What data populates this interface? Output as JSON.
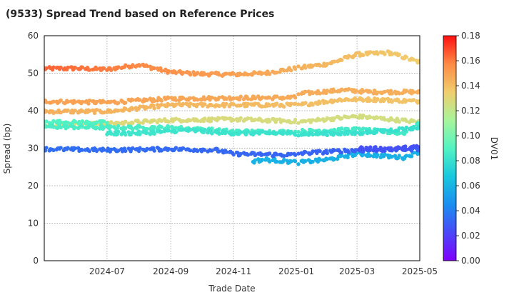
{
  "chart_data": {
    "type": "scatter",
    "title": "(9533)   Spread Trend based on Reference Prices",
    "xlabel": "Trade Date",
    "ylabel": "Spread (bp)",
    "ylim": [
      0,
      60
    ],
    "yticks": [
      "0",
      "10",
      "20",
      "30",
      "40",
      "50",
      "60"
    ],
    "xlim": [
      "2024-05-01",
      "2025-05-01"
    ],
    "xticks": [
      "2024-07",
      "2024-09",
      "2024-11",
      "2025-01",
      "2025-03",
      "2025-05"
    ],
    "grid": true,
    "colorbar": {
      "label": "DV01",
      "min": 0.0,
      "max": 0.18,
      "ticks": [
        "0.00",
        "0.02",
        "0.04",
        "0.06",
        "0.08",
        "0.10",
        "0.12",
        "0.14",
        "0.16",
        "0.18"
      ],
      "colormap": "rainbow"
    },
    "series": [
      {
        "dv01_start": 0.165,
        "dv01_end": 0.135,
        "segments": [
          {
            "from": "2024-05-01",
            "to": "2024-12-31",
            "points": [
              [
                "2024-05-01",
                51.2
              ],
              [
                "2024-06-01",
                51.3
              ],
              [
                "2024-07-01",
                51.0
              ],
              [
                "2024-08-01",
                52.3
              ],
              [
                "2024-09-01",
                50.3
              ],
              [
                "2024-10-01",
                49.8
              ],
              [
                "2024-11-01",
                49.7
              ],
              [
                "2024-12-01",
                50.0
              ],
              [
                "2024-12-31",
                51.3
              ]
            ]
          },
          {
            "from": "2025-01-03",
            "to": "2025-04-30",
            "points": [
              [
                "2025-01-03",
                51.4
              ],
              [
                "2025-02-01",
                52.5
              ],
              [
                "2025-03-01",
                55.0
              ],
              [
                "2025-04-01",
                55.5
              ],
              [
                "2025-04-30",
                53.0
              ]
            ]
          }
        ]
      },
      {
        "dv01_start": 0.15,
        "dv01_end": 0.145,
        "segments": [
          {
            "from": "2024-05-01",
            "to": "2024-12-31",
            "points": [
              [
                "2024-05-01",
                42.5
              ],
              [
                "2024-07-01",
                42.2
              ],
              [
                "2024-09-01",
                43.2
              ],
              [
                "2024-11-01",
                43.4
              ],
              [
                "2024-12-31",
                43.5
              ]
            ]
          },
          {
            "from": "2025-01-03",
            "to": "2025-04-30",
            "points": [
              [
                "2025-01-03",
                44.5
              ],
              [
                "2025-02-15",
                45.5
              ],
              [
                "2025-03-15",
                45.0
              ],
              [
                "2025-04-30",
                45.0
              ]
            ]
          }
        ]
      },
      {
        "dv01_start": 0.145,
        "dv01_end": 0.138,
        "segments": [
          {
            "from": "2024-05-01",
            "to": "2024-12-31",
            "points": [
              [
                "2024-05-01",
                39.8
              ],
              [
                "2024-07-01",
                39.8
              ],
              [
                "2024-09-01",
                41.5
              ],
              [
                "2024-11-01",
                41.5
              ],
              [
                "2024-12-31",
                41.5
              ]
            ]
          },
          {
            "from": "2025-01-03",
            "to": "2025-04-30",
            "points": [
              [
                "2025-01-03",
                41.5
              ],
              [
                "2025-02-15",
                43.0
              ],
              [
                "2025-03-15",
                43.0
              ],
              [
                "2025-04-30",
                42.5
              ]
            ]
          }
        ]
      },
      {
        "dv01_start": 0.13,
        "dv01_end": 0.125,
        "segments": [
          {
            "from": "2024-05-01",
            "to": "2024-12-31",
            "points": [
              [
                "2024-05-01",
                36.3
              ],
              [
                "2024-07-01",
                36.5
              ],
              [
                "2024-09-01",
                37.5
              ],
              [
                "2024-11-01",
                37.7
              ],
              [
                "2024-12-31",
                37.2
              ]
            ]
          },
          {
            "from": "2025-01-03",
            "to": "2025-04-30",
            "points": [
              [
                "2025-01-03",
                37.0
              ],
              [
                "2025-03-01",
                38.5
              ],
              [
                "2025-04-30",
                37.0
              ]
            ]
          }
        ]
      },
      {
        "dv01_start": 0.09,
        "dv01_end": 0.088,
        "segments": [
          {
            "from": "2024-05-01",
            "to": "2024-07-01",
            "points": [
              [
                "2024-05-01",
                37.0
              ],
              [
                "2024-07-01",
                36.8
              ]
            ]
          }
        ]
      },
      {
        "dv01_start": 0.087,
        "dv01_end": 0.085,
        "segments": [
          {
            "from": "2024-05-01",
            "to": "2024-12-31",
            "points": [
              [
                "2024-05-01",
                35.8
              ],
              [
                "2024-07-01",
                35.5
              ],
              [
                "2024-09-01",
                35.5
              ],
              [
                "2024-11-01",
                34.5
              ],
              [
                "2024-12-31",
                34.3
              ]
            ]
          },
          {
            "from": "2025-01-03",
            "to": "2025-04-30",
            "points": [
              [
                "2025-01-03",
                34.5
              ],
              [
                "2025-03-01",
                35.0
              ],
              [
                "2025-04-15",
                34.0
              ],
              [
                "2025-04-30",
                36.5
              ]
            ]
          }
        ]
      },
      {
        "dv01_start": 0.083,
        "dv01_end": 0.08,
        "segments": [
          {
            "from": "2024-07-01",
            "to": "2024-12-31",
            "points": [
              [
                "2024-07-01",
                34.0
              ],
              [
                "2024-08-01",
                34.0
              ],
              [
                "2024-09-15",
                34.8
              ],
              [
                "2024-11-01",
                34.0
              ],
              [
                "2024-12-31",
                34.0
              ]
            ]
          },
          {
            "from": "2025-01-03",
            "to": "2025-04-30",
            "points": [
              [
                "2025-01-03",
                33.8
              ],
              [
                "2025-03-01",
                34.0
              ],
              [
                "2025-04-30",
                35.5
              ]
            ]
          }
        ]
      },
      {
        "dv01_start": 0.06,
        "dv01_end": 0.058,
        "segments": [
          {
            "from": "2024-11-20",
            "to": "2024-12-31",
            "points": [
              [
                "2024-11-20",
                26.5
              ],
              [
                "2024-12-01",
                27.0
              ],
              [
                "2024-12-31",
                26.3
              ]
            ]
          },
          {
            "from": "2025-01-03",
            "to": "2025-04-30",
            "points": [
              [
                "2025-01-03",
                26.2
              ],
              [
                "2025-02-01",
                27.0
              ],
              [
                "2025-03-01",
                28.5
              ],
              [
                "2025-04-15",
                27.5
              ],
              [
                "2025-04-30",
                29.0
              ]
            ]
          }
        ]
      },
      {
        "dv01_start": 0.035,
        "dv01_end": 0.03,
        "segments": [
          {
            "from": "2024-05-01",
            "to": "2024-12-31",
            "points": [
              [
                "2024-05-01",
                29.8
              ],
              [
                "2024-07-01",
                29.5
              ],
              [
                "2024-09-01",
                29.8
              ],
              [
                "2024-10-15",
                29.5
              ],
              [
                "2024-11-01",
                28.5
              ],
              [
                "2024-12-31",
                28.2
              ]
            ]
          },
          {
            "from": "2025-01-03",
            "to": "2025-04-30",
            "points": [
              [
                "2025-01-03",
                28.6
              ],
              [
                "2025-02-15",
                29.3
              ],
              [
                "2025-04-30",
                29.8
              ]
            ]
          }
        ]
      },
      {
        "dv01_start": 0.025,
        "dv01_end": 0.025,
        "segments": [
          {
            "from": "2025-03-01",
            "to": "2025-04-30",
            "points": [
              [
                "2025-03-01",
                30.0
              ],
              [
                "2025-04-01",
                29.8
              ],
              [
                "2025-04-30",
                30.3
              ]
            ]
          }
        ]
      }
    ]
  }
}
